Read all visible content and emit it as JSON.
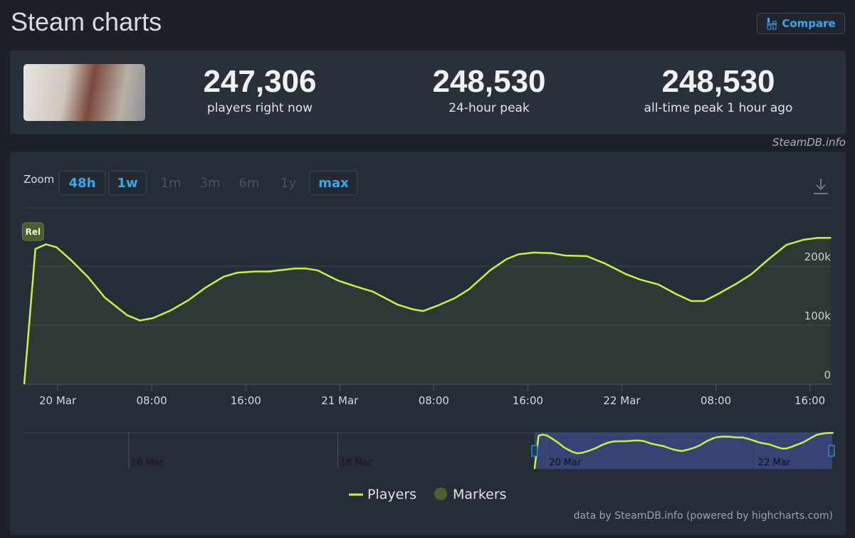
{
  "header": {
    "title": "Steam charts",
    "compare": "Compare"
  },
  "stats": [
    {
      "value": "247,306",
      "label": "players right now"
    },
    {
      "value": "248,530",
      "label": "24-hour peak"
    },
    {
      "value": "248,530",
      "label": "all-time peak 1 hour ago"
    }
  ],
  "source": "SteamDB.info",
  "zoom": {
    "label": "Zoom",
    "buttons": [
      {
        "label": "48h",
        "enabled": true
      },
      {
        "label": "1w",
        "enabled": true
      },
      {
        "label": "1m",
        "enabled": false
      },
      {
        "label": "3m",
        "enabled": false
      },
      {
        "label": "6m",
        "enabled": false
      },
      {
        "label": "1y",
        "enabled": false
      },
      {
        "label": "max",
        "enabled": true
      }
    ]
  },
  "credit": "data by SteamDB.info (powered by highcharts.com)",
  "chart_data": {
    "type": "line",
    "x": [
      -2.85,
      -1.9,
      -1.0,
      -0.1,
      1.1,
      2.6,
      4.0,
      5.9,
      7.0,
      8.1,
      9.6,
      11.1,
      12.6,
      14.1,
      15.3,
      16.8,
      18.0,
      20.2,
      21.1,
      22.1,
      23.8,
      25.3,
      26.8,
      28.9,
      30.2,
      31.1,
      32.3,
      33.8,
      35.0,
      36.8,
      38.2,
      39.2,
      40.5,
      42.0,
      43.2,
      45.0,
      46.5,
      48.4,
      49.6,
      51.1,
      52.6,
      53.9,
      55.0,
      56.2,
      57.8,
      59.0,
      60.5,
      62.0,
      63.5,
      64.7,
      65.8
    ],
    "series": [
      {
        "name": "Players",
        "color": "#c3f53c",
        "values": [
          0,
          229000,
          237000,
          232000,
          211000,
          181000,
          147000,
          117000,
          108000,
          112000,
          125000,
          142000,
          164000,
          182000,
          189000,
          191000,
          191000,
          196000,
          196000,
          193000,
          176000,
          166000,
          157000,
          135000,
          127000,
          124000,
          133000,
          146000,
          161000,
          193000,
          212000,
          220000,
          223000,
          222000,
          218000,
          217000,
          205000,
          186000,
          177000,
          169000,
          153000,
          141000,
          141000,
          153000,
          171000,
          186000,
          212000,
          236000,
          245000,
          248000,
          248000
        ]
      }
    ],
    "markers": {
      "name": "Markers",
      "color": "#4d5e2f",
      "items": [
        {
          "x": -2.1,
          "label": "Rel"
        }
      ]
    },
    "xlim": [
      -2.85,
      65.9
    ],
    "xticks": [
      {
        "value": 0,
        "label": "20 Mar"
      },
      {
        "value": 8,
        "label": "08:00"
      },
      {
        "value": 16,
        "label": "16:00"
      },
      {
        "value": 24,
        "label": "21 Mar"
      },
      {
        "value": 32,
        "label": "08:00"
      },
      {
        "value": 40,
        "label": "16:00"
      },
      {
        "value": 48,
        "label": "22 Mar"
      },
      {
        "value": 56,
        "label": "08:00"
      },
      {
        "value": 64,
        "label": "16:00"
      }
    ],
    "ylim": [
      0,
      300000
    ],
    "yticks": [
      0,
      {
        "value": 100000,
        "label": "100k"
      },
      {
        "value": 200000,
        "label": "200k"
      }
    ],
    "grid": true,
    "navigator": {
      "xlim": [
        -120,
        65.5
      ],
      "xticks": [
        {
          "value": -96,
          "label": "16 Mar"
        },
        {
          "value": -48,
          "label": "18 Mar"
        },
        {
          "value": 0,
          "label": "20 Mar"
        },
        {
          "value": 48,
          "label": "22 Mar"
        }
      ]
    }
  }
}
